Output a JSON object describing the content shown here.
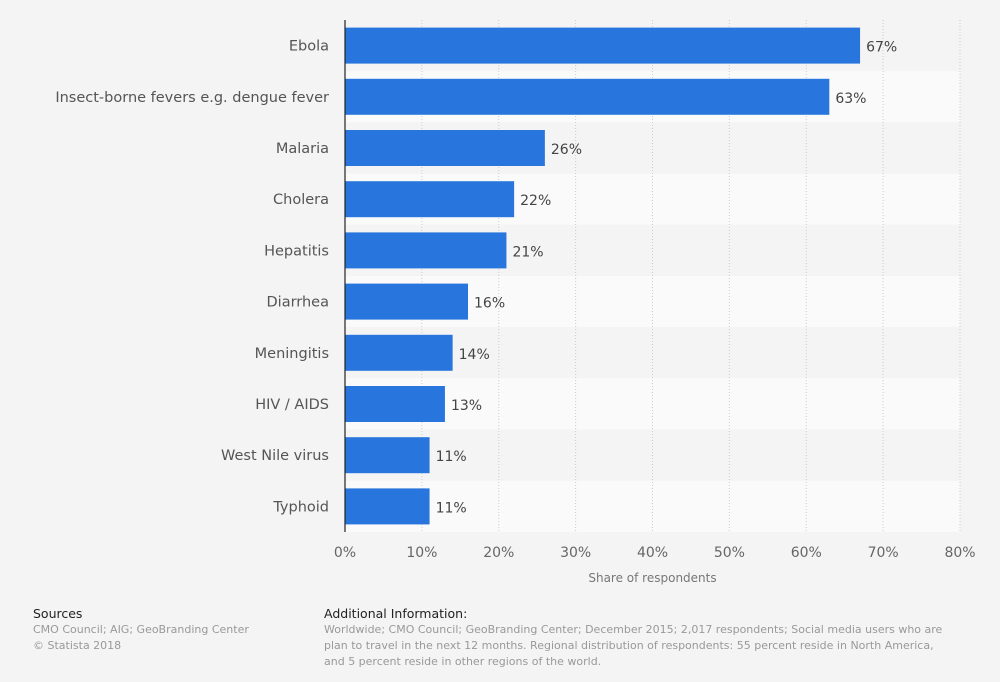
{
  "chart_data": {
    "type": "bar",
    "orientation": "horizontal",
    "categories": [
      "Ebola",
      "Insect-borne fevers e.g. dengue fever",
      "Malaria",
      "Cholera",
      "Hepatitis",
      "Diarrhea",
      "Meningitis",
      "HIV / AIDS",
      "West Nile virus",
      "Typhoid"
    ],
    "values": [
      67,
      63,
      26,
      22,
      21,
      16,
      14,
      13,
      11,
      11
    ],
    "data_labels": [
      "67%",
      "63%",
      "26%",
      "22%",
      "21%",
      "16%",
      "14%",
      "13%",
      "11%",
      "11%"
    ],
    "xlabel": "Share of respondents",
    "xlim": [
      0,
      80
    ],
    "xticks": [
      "0%",
      "10%",
      "20%",
      "30%",
      "40%",
      "50%",
      "60%",
      "70%",
      "80%"
    ],
    "grid": true,
    "bar_color": "#2876dd"
  },
  "footer": {
    "sources_title": "Sources",
    "sources_line1": "CMO Council; AIG; GeoBranding Center",
    "sources_line2": "© Statista 2018",
    "info_title": "Additional Information:",
    "info_line1": "Worldwide; CMO Council; GeoBranding Center; December 2015; 2,017 respondents; Social media users who are",
    "info_line2": "plan to travel in the next 12 months. Regional distribution of respondents: 55 percent reside in North America,",
    "info_line3": "and 5 percent reside in other regions of the world."
  }
}
